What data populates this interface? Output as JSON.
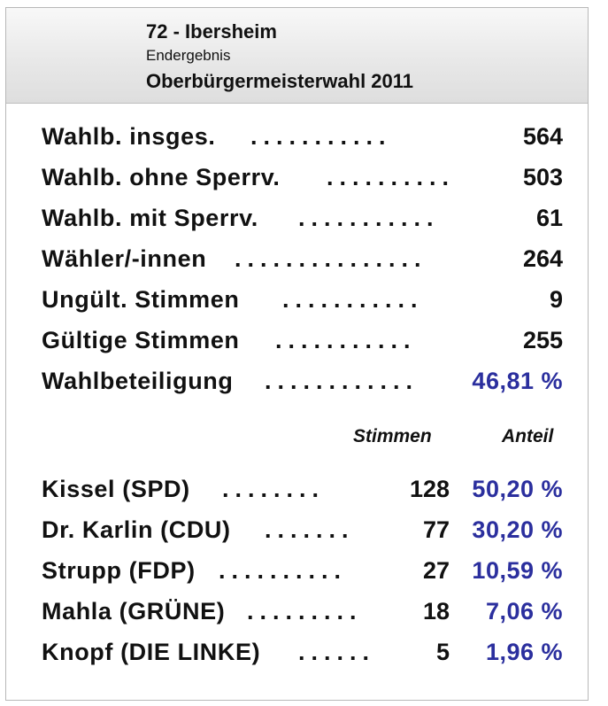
{
  "header": {
    "title": "72 - Ibersheim",
    "subtitle": "Endergebnis",
    "election": "Oberbürgermeisterwahl 2011"
  },
  "stats": [
    {
      "label": "Wahlb. insges.",
      "value": "564"
    },
    {
      "label": "Wahlb. ohne Sperrv.",
      "value": "503"
    },
    {
      "label": "Wahlb. mit Sperrv.",
      "value": "61"
    },
    {
      "label": "Wähler/-innen",
      "value": "264"
    },
    {
      "label": "Ungült. Stimmen",
      "value": "9"
    },
    {
      "label": "Gültige Stimmen",
      "value": "255"
    },
    {
      "label": "Wahlbeteiligung",
      "value": "46,81 %"
    }
  ],
  "columns": {
    "votes": "Stimmen",
    "share": "Anteil"
  },
  "candidates": [
    {
      "name": "Kissel (SPD)",
      "votes": "128",
      "share": "50,20 %"
    },
    {
      "name": "Dr. Karlin (CDU)",
      "votes": "77",
      "share": "30,20 %"
    },
    {
      "name": "Strupp (FDP)",
      "votes": "27",
      "share": "10,59 %"
    },
    {
      "name": "Mahla (GRÜNE)",
      "votes": "18",
      "share": "7,06 %"
    },
    {
      "name": "Knopf (DIE LINKE)",
      "votes": "5",
      "share": "1,96 %"
    }
  ],
  "colors": {
    "percent": "#2b2f9e",
    "text": "#111111"
  }
}
